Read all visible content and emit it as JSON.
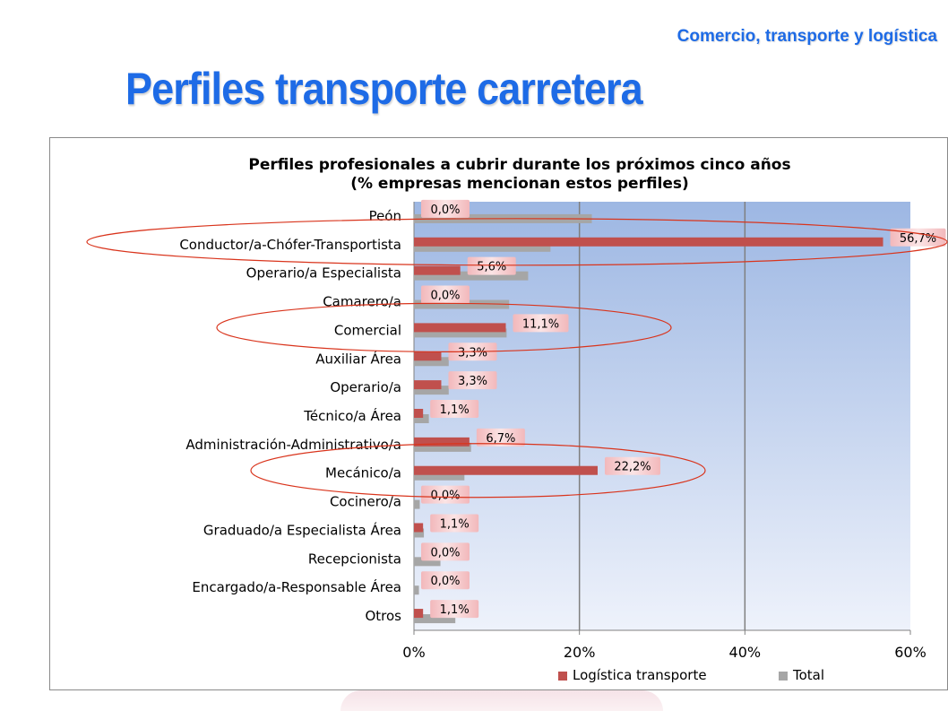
{
  "header": {
    "corner_title": "Comercio, transporte y logística",
    "page_title": "Perfiles transporte carretera"
  },
  "colors": {
    "accent_blue": "#1e6be6",
    "series_logistica": "#c0504d",
    "series_total": "#a6a6a6",
    "highlight_ellipse": "#d9341c"
  },
  "chart_data": {
    "type": "bar",
    "orientation": "horizontal",
    "title": "Perfiles profesionales a cubrir durante los próximos cinco años",
    "subtitle": "(% empresas mencionan estos perfiles)",
    "categories": [
      "Peón",
      "Conductor/a-Chófer-Transportista",
      "Operario/a Especialista",
      "Camarero/a",
      "Comercial",
      "Auxiliar Área",
      "Operario/a",
      "Técnico/a Área",
      "Administración-Administrativo/a",
      "Mecánico/a",
      "Cocinero/a",
      "Graduado/a Especialista Área",
      "Recepcionista",
      "Encargado/a-Responsable Área",
      "Otros"
    ],
    "series": [
      {
        "name": "Logística transporte",
        "values": [
          0,
          56.7,
          5.6,
          0,
          11.1,
          3.3,
          3.3,
          1.1,
          6.7,
          22.2,
          0,
          1.1,
          0,
          0,
          1.1
        ],
        "labels": [
          "0,0%",
          "56,7%",
          "5,6%",
          "0,0%",
          "11,1%",
          "3,3%",
          "3,3%",
          "1,1%",
          "6,7%",
          "22,2%",
          "0,0%",
          "1,1%",
          "0,0%",
          "0,0%",
          "1,1%"
        ]
      },
      {
        "name": "Total",
        "values": [
          21.5,
          16.5,
          13.8,
          11.5,
          11.2,
          4.2,
          4.2,
          1.8,
          6.9,
          6.1,
          0.7,
          1.2,
          3.2,
          0.6,
          5.0
        ]
      }
    ],
    "xlim": [
      0,
      60
    ],
    "xticks": [
      "0%",
      "20%",
      "40%",
      "60%"
    ],
    "gridlines": [
      20,
      40
    ],
    "highlighted_categories": [
      "Conductor/a-Chófer-Transportista",
      "Comercial",
      "Mecánico/a"
    ],
    "legend_position": "bottom-right",
    "grid": true
  }
}
